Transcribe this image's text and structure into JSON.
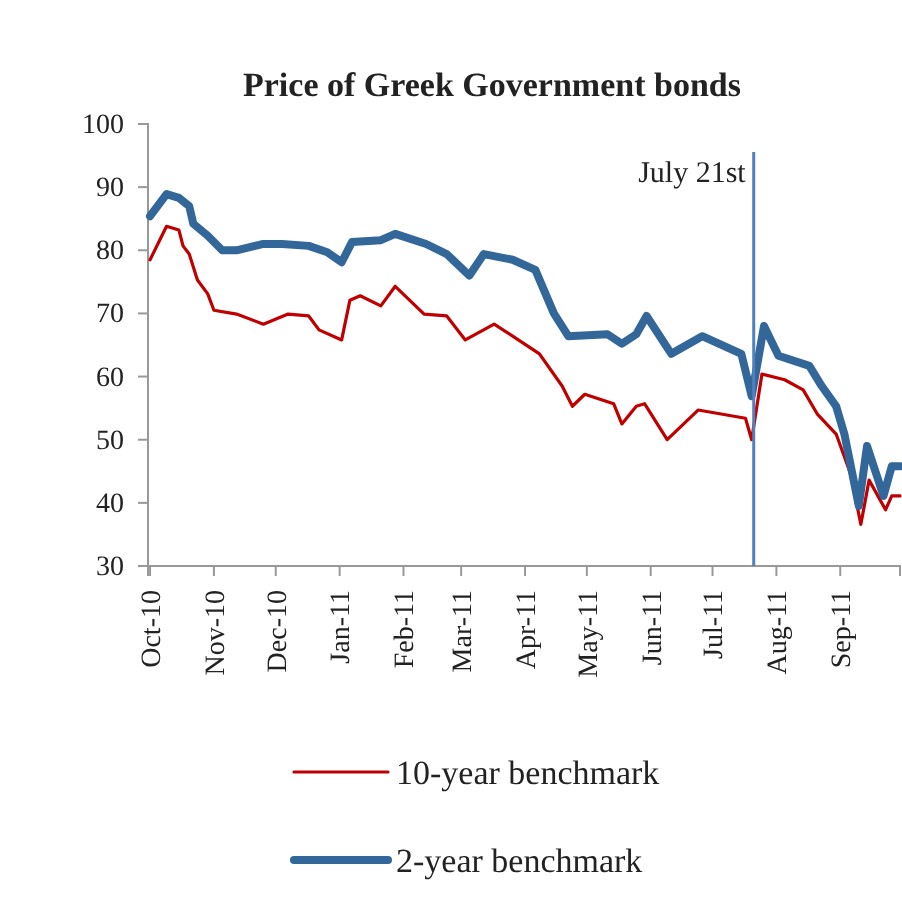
{
  "chart_data": {
    "type": "line",
    "title": "Price of Greek Government bonds",
    "xlim": [
      "2010-09-30",
      "2011-09-30"
    ],
    "xticks": [
      {
        "value": "2010-10-01",
        "label": "Oct-10"
      },
      {
        "value": "2010-11-01",
        "label": "Nov-10"
      },
      {
        "value": "2010-12-01",
        "label": "Dec-10"
      },
      {
        "value": "2011-01-01",
        "label": "Jan-11"
      },
      {
        "value": "2011-02-01",
        "label": "Feb-11"
      },
      {
        "value": "2011-03-01",
        "label": "Mar-11"
      },
      {
        "value": "2011-04-01",
        "label": "Apr-11"
      },
      {
        "value": "2011-05-01",
        "label": "May-11"
      },
      {
        "value": "2011-06-01",
        "label": "Jun-11"
      },
      {
        "value": "2011-07-01",
        "label": "Jul-11"
      },
      {
        "value": "2011-08-01",
        "label": "Aug-11"
      },
      {
        "value": "2011-09-01",
        "label": "Sep-11"
      }
    ],
    "ylim": [
      30,
      100
    ],
    "yticks": [
      30,
      40,
      50,
      60,
      70,
      80,
      90,
      100
    ],
    "grid": false,
    "legend": "bottom",
    "marker": "none",
    "line_style": "solid",
    "ref_lines": [
      {
        "axis": "x",
        "value": "2011-07-21",
        "label": "July 21st",
        "color": "#4f81bd"
      }
    ],
    "series": [
      {
        "name": "10-year benchmark",
        "color": "#c00000",
        "x": [
          "2010-10-01",
          "2010-10-09",
          "2010-10-15",
          "2010-10-17",
          "2010-10-20",
          "2010-10-24",
          "2010-10-29",
          "2010-11-01",
          "2010-11-12",
          "2010-11-25",
          "2010-12-07",
          "2010-12-17",
          "2010-12-22",
          "2011-01-02",
          "2011-01-06",
          "2011-01-11",
          "2011-01-21",
          "2011-01-28",
          "2011-02-11",
          "2011-02-22",
          "2011-03-03",
          "2011-03-17",
          "2011-03-26",
          "2011-04-08",
          "2011-04-19",
          "2011-04-24",
          "2011-04-30",
          "2011-05-14",
          "2011-05-18",
          "2011-05-25",
          "2011-05-29",
          "2011-06-09",
          "2011-06-24",
          "2011-07-17",
          "2011-07-20",
          "2011-07-25",
          "2011-08-05",
          "2011-08-14",
          "2011-08-21",
          "2011-08-30",
          "2011-09-06",
          "2011-09-11",
          "2011-09-15",
          "2011-09-23",
          "2011-09-26",
          "2011-09-30"
        ],
        "values": [
          78.5,
          83.8,
          83.2,
          80.7,
          79.4,
          75.3,
          73.1,
          70.5,
          69.9,
          68.3,
          69.9,
          69.6,
          67.4,
          65.8,
          72.1,
          72.8,
          71.2,
          74.3,
          69.9,
          69.6,
          65.8,
          68.3,
          66.4,
          63.6,
          58.5,
          55.3,
          57.2,
          55.7,
          52.5,
          55.3,
          55.7,
          50,
          54.7,
          53.4,
          50,
          60.4,
          59.5,
          57.9,
          54,
          50.9,
          44.6,
          36.6,
          43.6,
          38.9,
          41.1,
          41.1
        ]
      },
      {
        "name": "2-year benchmark",
        "color": "#336699",
        "x": [
          "2010-10-01",
          "2010-10-09",
          "2010-10-15",
          "2010-10-20",
          "2010-10-22",
          "2010-10-29",
          "2010-11-05",
          "2010-11-12",
          "2010-11-25",
          "2010-12-04",
          "2010-12-17",
          "2010-12-26",
          "2011-01-02",
          "2011-01-07",
          "2011-01-21",
          "2011-01-28",
          "2011-02-12",
          "2011-02-22",
          "2011-03-05",
          "2011-03-12",
          "2011-03-26",
          "2011-04-06",
          "2011-04-15",
          "2011-04-22",
          "2011-05-11",
          "2011-05-18",
          "2011-05-25",
          "2011-05-30",
          "2011-06-11",
          "2011-06-26",
          "2011-07-15",
          "2011-07-20",
          "2011-07-26",
          "2011-08-02",
          "2011-08-17",
          "2011-08-23",
          "2011-08-30",
          "2011-09-03",
          "2011-09-10",
          "2011-09-14",
          "2011-09-22",
          "2011-09-26",
          "2011-09-30"
        ],
        "values": [
          85.4,
          88.9,
          88.3,
          87,
          84.2,
          82.3,
          80,
          80,
          81,
          81,
          80.7,
          79.7,
          78.1,
          81.3,
          81.6,
          82.6,
          81,
          79.4,
          76,
          79.4,
          78.5,
          76.9,
          70,
          66.4,
          66.7,
          65.2,
          66.7,
          69.6,
          63.6,
          66.4,
          63.6,
          56.9,
          68,
          63.3,
          61.7,
          58.5,
          55.3,
          50.9,
          39.5,
          49,
          41.1,
          45.8,
          45.8
        ]
      }
    ]
  }
}
